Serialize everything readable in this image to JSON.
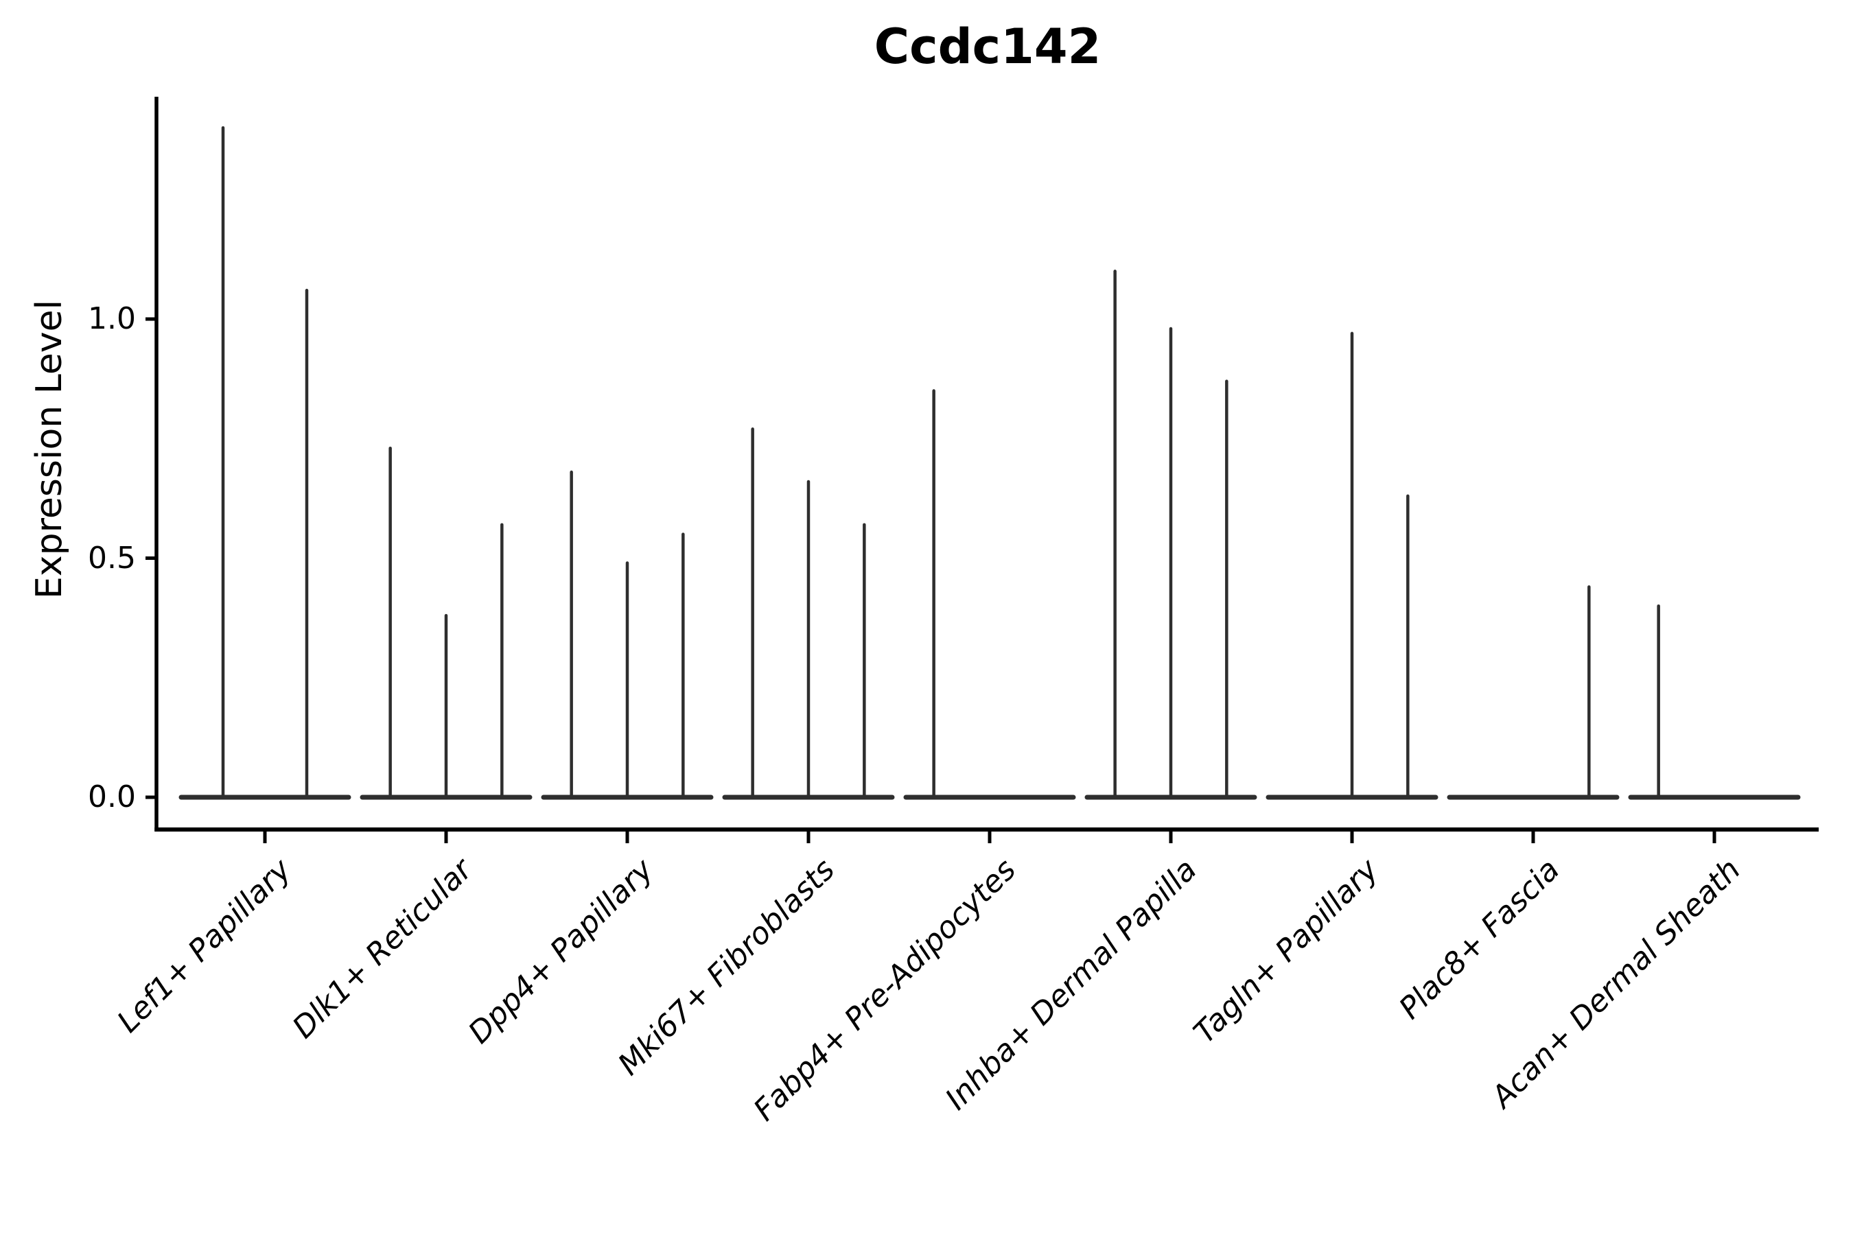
{
  "title": "Ccdc142",
  "chart_data": {
    "type": "violin",
    "title": "Ccdc142",
    "xlabel": "",
    "ylabel": "Expression Level",
    "ylim": [
      0,
      1.47
    ],
    "yticks": [
      0.0,
      0.5,
      1.0
    ],
    "ytick_labels": [
      "0.0",
      "0.5",
      "1.0"
    ],
    "grid": false,
    "legend": "none",
    "description": "Violin plot of Ccdc142 expression; each category shows 2-3 extremely thin violins (spikes) rising from a flat base at 0. Values are the peak (max) expression level of each violin spike; 0 means the violin is entirely flat at zero.",
    "categories": [
      "Lef1+ Papillary",
      "Dlk1+ Reticular",
      "Dpp4+ Papillary",
      "Mki67+ Fibroblasts",
      "Fabp4+ Pre-Adipocytes",
      "Inhba+ Dermal Papilla",
      "Tagln+ Papillary",
      "Plac8+ Fascia",
      "Acan+ Dermal Sheath"
    ],
    "groups": [
      {
        "category": "Lef1+ Papillary",
        "spike_maxima": [
          1.4,
          1.06
        ]
      },
      {
        "category": "Dlk1+ Reticular",
        "spike_maxima": [
          0.73,
          0.38,
          0.57
        ]
      },
      {
        "category": "Dpp4+ Papillary",
        "spike_maxima": [
          0.68,
          0.49,
          0.55
        ]
      },
      {
        "category": "Mki67+ Fibroblasts",
        "spike_maxima": [
          0.77,
          0.66,
          0.57
        ]
      },
      {
        "category": "Fabp4+ Pre-Adipocytes",
        "spike_maxima": [
          0.85,
          0.0,
          0.0
        ]
      },
      {
        "category": "Inhba+ Dermal Papilla",
        "spike_maxima": [
          1.1,
          0.98,
          0.87
        ]
      },
      {
        "category": "Tagln+ Papillary",
        "spike_maxima": [
          0.0,
          0.97,
          0.63
        ]
      },
      {
        "category": "Plac8+ Fascia",
        "spike_maxima": [
          0.0,
          0.0,
          0.44
        ]
      },
      {
        "category": "Acan+ Dermal Sheath",
        "spike_maxima": [
          0.4,
          0.0,
          0.0
        ]
      }
    ],
    "colors": {
      "violin_line": "#2e2e2e",
      "axis": "#000000",
      "text": "#000000",
      "background": "#ffffff"
    }
  }
}
